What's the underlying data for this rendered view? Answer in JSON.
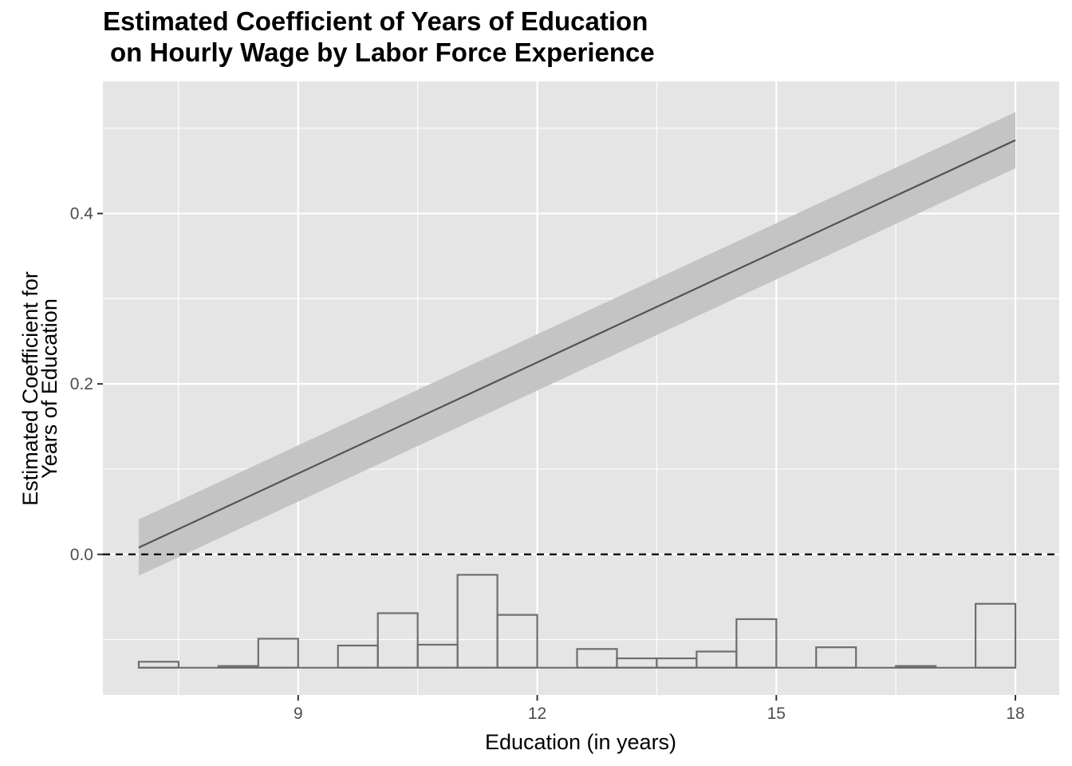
{
  "chart_data": {
    "type": "line",
    "title": [
      "Estimated Coefficient of Years of Education",
      "on Hourly Wage by Labor Force Experience"
    ],
    "xlabel": "Education (in years)",
    "ylabel": [
      "Estimated Coefficient for",
      "Years of Education"
    ],
    "xlim": [
      6.55,
      18.55
    ],
    "ylim": [
      -0.165,
      0.555
    ],
    "x_ticks": [
      9,
      12,
      15,
      18
    ],
    "x_tick_labels": [
      "9",
      "12",
      "15",
      "18"
    ],
    "y_ticks": [
      0.0,
      0.2,
      0.4
    ],
    "y_tick_labels": [
      "0.0",
      "0.2",
      "0.4"
    ],
    "grid": true,
    "series": [
      {
        "kind": "line",
        "x": [
          7,
          18
        ],
        "y": [
          0.008,
          0.486
        ],
        "ci_lower": [
          -0.025,
          0.453
        ],
        "ci_upper": [
          0.041,
          0.519
        ]
      }
    ],
    "reference_line": {
      "y": 0.0,
      "style": "dashed"
    },
    "histogram": {
      "baseline": -0.133,
      "bin_edges": [
        7,
        7.5,
        8,
        8.5,
        9,
        9.5,
        10,
        10.5,
        11,
        11.5,
        12,
        12.5,
        13,
        13.5,
        14,
        14.5,
        15,
        15.5,
        16,
        16.5,
        17,
        17.5,
        18
      ],
      "tops": [
        -0.126,
        -0.133,
        -0.131,
        -0.099,
        -0.133,
        -0.107,
        -0.069,
        -0.106,
        -0.024,
        -0.071,
        -0.133,
        -0.111,
        -0.122,
        -0.122,
        -0.114,
        -0.076,
        -0.133,
        -0.109,
        -0.133,
        -0.131,
        -0.133,
        -0.058
      ]
    },
    "colors": {
      "panel": "#e5e5e5",
      "grid": "#ffffff",
      "ribbon": "#c4c4c4",
      "line": "#545454",
      "histogram_outline": "#6e6e6e",
      "reference": "#000000"
    }
  }
}
